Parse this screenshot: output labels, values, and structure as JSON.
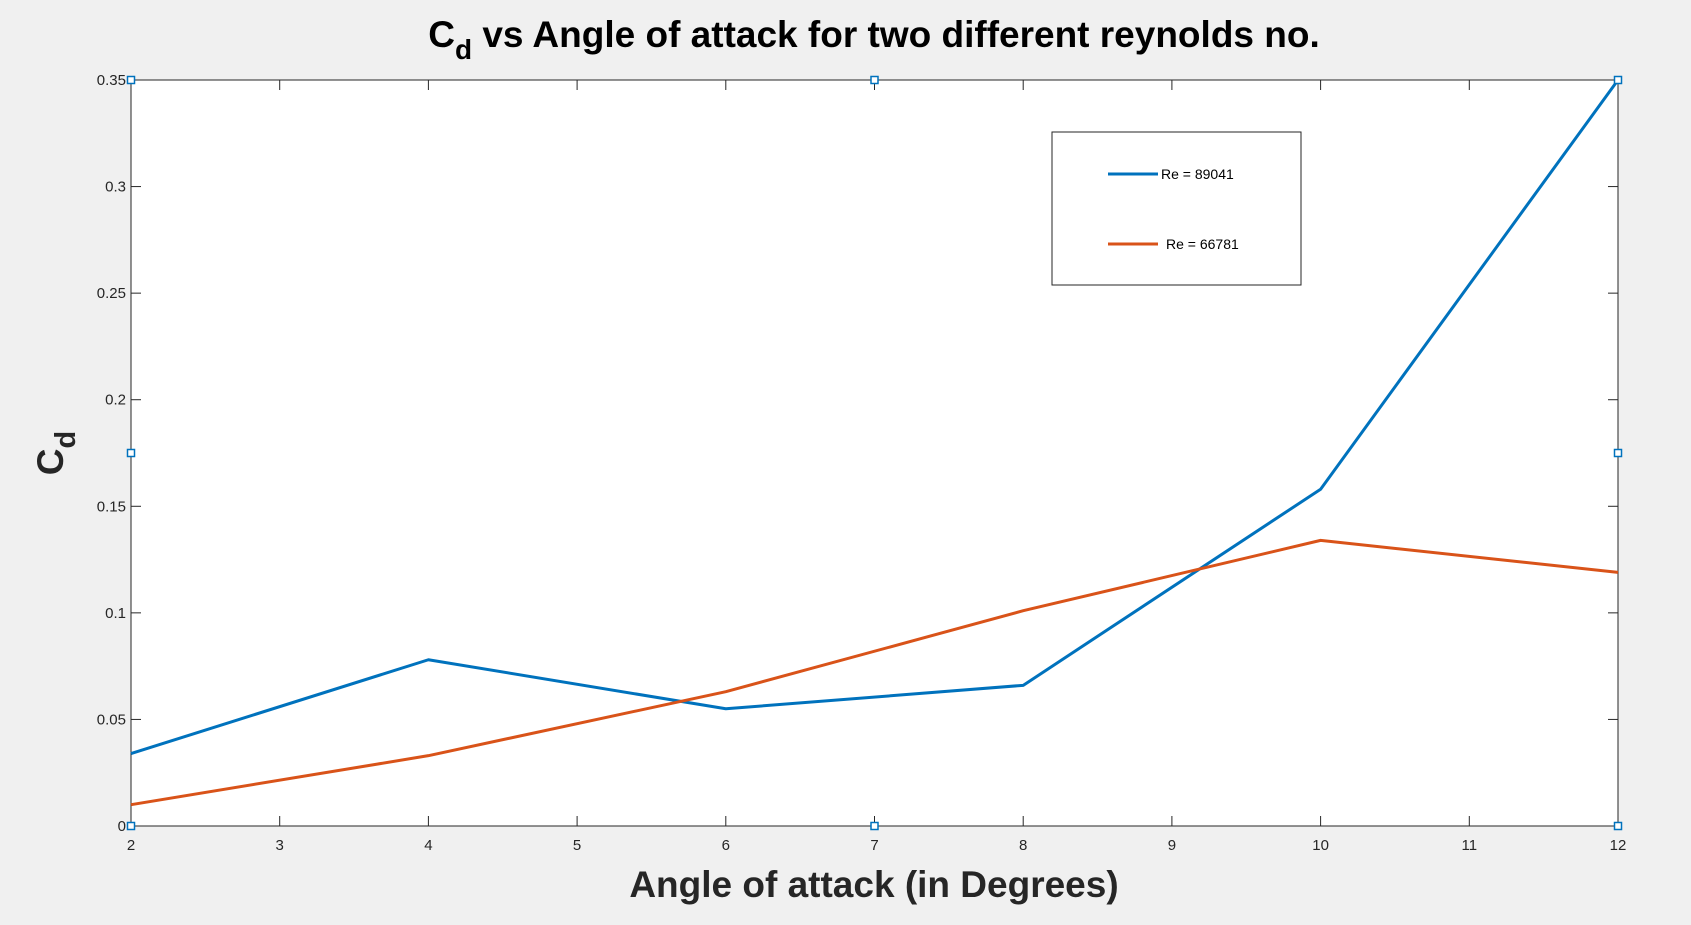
{
  "chart_data": {
    "type": "line",
    "title": {
      "prefix": "C",
      "subscript": "d",
      "suffix": " vs Angle of attack for two different reynolds no."
    },
    "xlabel": "Angle of attack (in Degrees)",
    "ylabel": {
      "main": "C",
      "subscript": "d"
    },
    "xlim": [
      2,
      12
    ],
    "ylim": [
      0,
      0.35
    ],
    "xticks": [
      2,
      3,
      4,
      5,
      6,
      7,
      8,
      9,
      10,
      11,
      12
    ],
    "xtick_labels": [
      "2",
      "3",
      "4",
      "5",
      "6",
      "7",
      "8",
      "9",
      "10",
      "11",
      "12"
    ],
    "yticks": [
      0,
      0.05,
      0.1,
      0.15,
      0.2,
      0.25,
      0.3,
      0.35
    ],
    "ytick_labels": [
      "0",
      "0.05",
      "0.1",
      "0.15",
      "0.2",
      "0.25",
      "0.3",
      "0.35"
    ],
    "grid": false,
    "legend_position": "top-right",
    "series": [
      {
        "name": "Re = 89041",
        "color": "#0072bd",
        "x": [
          2,
          4,
          6,
          8,
          10,
          12
        ],
        "y": [
          0.034,
          0.078,
          0.055,
          0.066,
          0.158,
          0.35
        ]
      },
      {
        "name": "Re = 66781",
        "color": "#d95319",
        "x": [
          2,
          4,
          6,
          8,
          10,
          12
        ],
        "y": [
          0.01,
          0.033,
          0.063,
          0.101,
          0.134,
          0.119
        ]
      }
    ],
    "selection_handle_color": "#0072bd"
  }
}
